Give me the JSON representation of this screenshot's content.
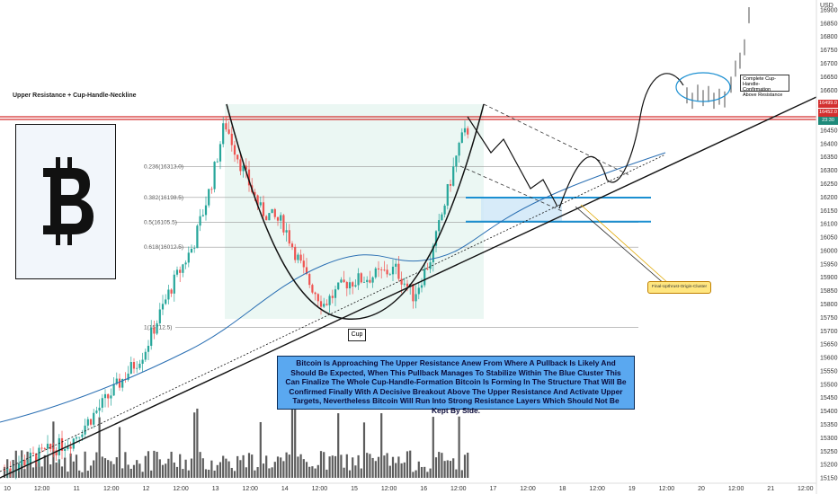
{
  "chart_data": {
    "type": "candlestick",
    "title": "Upper Resistance + Cup-Handle-Neckline",
    "y_axis": {
      "ticks": [
        15150,
        15200,
        15250,
        15300,
        15350,
        15400,
        15450,
        15500,
        15550,
        15600,
        15650,
        15700,
        15750,
        15800,
        15850,
        15900,
        15950,
        16000,
        16050,
        16100,
        16150,
        16200,
        16250,
        16300,
        16350,
        16400,
        16450,
        16500,
        16550,
        16600,
        16650,
        16700,
        16750,
        16800,
        16850,
        16900
      ],
      "ylim": [
        15130,
        16930
      ],
      "currency": "USD"
    },
    "x_axis": {
      "ticks": [
        "10",
        "12:00",
        "11",
        "12:00",
        "12",
        "12:00",
        "13",
        "12:00",
        "14",
        "12:00",
        "15",
        "12:00",
        "16",
        "12:00",
        "17",
        "12:00",
        "18",
        "12:00",
        "19",
        "12:00",
        "20",
        "12:00",
        "21",
        "12:00"
      ]
    },
    "price_labels": [
      {
        "value": 16499.0,
        "text": "16499.0",
        "color": "#d32f2f"
      },
      {
        "value": 16452.0,
        "text": "16452.0",
        "color": "#d32f2f"
      },
      {
        "value": 16425,
        "text": "23:30",
        "color": "#1e8a7a"
      }
    ],
    "resistance_level": 16495,
    "fibonacci_levels": [
      {
        "ratio": "0.236",
        "price": "16313.0",
        "value": 16313.0
      },
      {
        "ratio": "0.382",
        "price": "16198.5",
        "value": 16198.5
      },
      {
        "ratio": "0.5",
        "price": "16105.5",
        "value": 16105.5
      },
      {
        "ratio": "0.618",
        "price": "16012.5",
        "value": 16012.5
      },
      {
        "ratio": "1",
        "price": "15712.5",
        "value": 15712.5
      }
    ],
    "blue_cluster": {
      "top": 16198,
      "bottom": 16108
    },
    "series": [
      {
        "type": "candles",
        "values_summary": "Rally from ~15180 to ~16490, cup down to ~15710, recovery to ~16460"
      },
      {
        "type": "moving_average",
        "color": "#2a6fb3"
      },
      {
        "type": "volume",
        "color": "#222"
      }
    ]
  },
  "labels": {
    "title": "Upper Resistance + Cup-Handle-Neckline",
    "cup": "Cup",
    "cluster": "Final-Upthrust-Origin-Cluster",
    "confirm_line1": "Complete Cup-Handle-",
    "confirm_line2": "Confirmation",
    "confirm_line3": "Above Resistance",
    "currency": "USD",
    "note": "Bitcoin Is Approaching The Upper Resistance Anew From Where A Pullback Is Likely And Should Be Expected, When This Pullback Manages To Stabilize Within The Blue Cluster This Can Finalize The Whole Cup-Handle-Formation Bitcoin Is Forming In The Structure That Will Be Confirmed Finally With A Decisive Breakout Above The Upper Resistance And Activate Upper Targets, Nevertheless Bitcoin Will Run Into Strong Resistance Layers Which Should Not Be Kept By Side.",
    "logo_glyph": "bitcoin-symbol"
  },
  "colors": {
    "up": "#26a69a",
    "down": "#ef5350",
    "resistance": "#d32f2f",
    "cluster": "#1b8fd1",
    "ma": "#2a6fb3",
    "note_bg": "#5aa8f0"
  }
}
